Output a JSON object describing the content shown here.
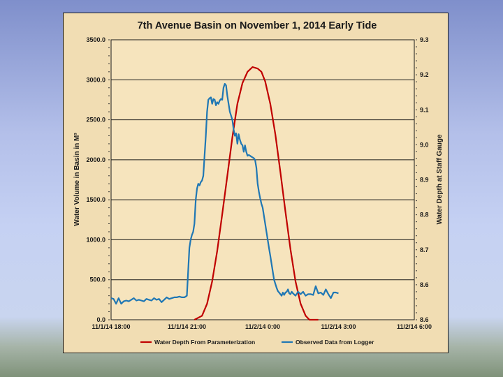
{
  "chart_data": {
    "type": "line",
    "title": "7th Avenue Basin on November 1, 2014 Early Tide",
    "ylabel": "Water  Volume  in  Basin  in M³",
    "y2label": "Water Depth at Staff Gauge",
    "ylim": [
      0,
      3500
    ],
    "yticks": [
      "0.0",
      "500.0",
      "1000.0",
      "1500.0",
      "2000.0",
      "2500.0",
      "3000.0",
      "3500.0"
    ],
    "y2ticks": [
      "8.6",
      "8.6",
      "8.7",
      "8.8",
      "8.9",
      "9.0",
      "9.1",
      "9.2",
      "9.3"
    ],
    "xlim_hours": [
      0,
      12
    ],
    "xticks": [
      "11/1/14 18:00",
      "11/1/14 21:00",
      "11/2/14 0:00",
      "11/2/14 3:00",
      "11/2/14 6:00"
    ],
    "grid": "horizontal",
    "legend_position": "bottom",
    "series": [
      {
        "name": "Water Depth From Parameterization",
        "color": "#c00000",
        "x": [
          3.3,
          3.6,
          3.8,
          4.0,
          4.2,
          4.4,
          4.6,
          4.8,
          5.0,
          5.2,
          5.4,
          5.6,
          5.8,
          5.95,
          6.1,
          6.3,
          6.5,
          6.7,
          6.9,
          7.1,
          7.3,
          7.5,
          7.7,
          7.85,
          8.0,
          8.2
        ],
        "values": [
          0,
          50,
          200,
          480,
          860,
          1320,
          1800,
          2280,
          2700,
          2960,
          3100,
          3160,
          3140,
          3100,
          2980,
          2700,
          2320,
          1850,
          1350,
          880,
          480,
          200,
          50,
          0,
          0,
          0
        ]
      },
      {
        "name": "Observed Data from Logger",
        "color": "#1f77b4",
        "x": [
          0.0,
          0.1,
          0.2,
          0.3,
          0.4,
          0.5,
          0.6,
          0.7,
          0.8,
          0.9,
          1.0,
          1.1,
          1.2,
          1.3,
          1.4,
          1.5,
          1.6,
          1.7,
          1.8,
          1.9,
          2.0,
          2.1,
          2.2,
          2.3,
          2.4,
          2.5,
          2.6,
          2.7,
          2.8,
          2.9,
          2.95,
          3.0,
          3.05,
          3.1,
          3.15,
          3.2,
          3.25,
          3.3,
          3.35,
          3.4,
          3.45,
          3.5,
          3.55,
          3.6,
          3.65,
          3.7,
          3.75,
          3.8,
          3.85,
          3.9,
          3.95,
          4.0,
          4.05,
          4.1,
          4.15,
          4.2,
          4.25,
          4.3,
          4.35,
          4.4,
          4.45,
          4.5,
          4.55,
          4.6,
          4.65,
          4.7,
          4.75,
          4.8,
          4.85,
          4.9,
          4.95,
          5.0,
          5.05,
          5.1,
          5.15,
          5.2,
          5.25,
          5.3,
          5.35,
          5.4,
          5.45,
          5.5,
          5.55,
          5.6,
          5.65,
          5.7,
          5.75,
          5.8,
          5.85,
          5.9,
          5.95,
          6.0,
          6.05,
          6.1,
          6.15,
          6.2,
          6.25,
          6.3,
          6.35,
          6.4,
          6.45,
          6.5,
          6.55,
          6.6,
          6.65,
          6.7,
          6.75,
          6.8,
          6.85,
          6.9,
          6.95,
          7.0,
          7.05,
          7.1,
          7.15,
          7.2,
          7.3,
          7.4,
          7.5,
          7.6,
          7.7,
          7.8,
          7.9,
          8.0,
          8.1,
          8.2,
          8.3,
          8.4,
          8.5,
          8.6,
          8.7,
          8.8,
          8.9,
          9.0
        ],
        "values": [
          270,
          260,
          200,
          270,
          200,
          230,
          240,
          230,
          250,
          270,
          240,
          250,
          240,
          230,
          260,
          250,
          240,
          270,
          250,
          260,
          220,
          250,
          280,
          260,
          270,
          280,
          280,
          290,
          280,
          280,
          290,
          300,
          600,
          900,
          1000,
          1060,
          1100,
          1200,
          1500,
          1640,
          1700,
          1680,
          1720,
          1740,
          1800,
          2050,
          2300,
          2600,
          2750,
          2770,
          2780,
          2700,
          2760,
          2750,
          2680,
          2720,
          2700,
          2740,
          2760,
          2750,
          2900,
          2950,
          2930,
          2800,
          2700,
          2600,
          2550,
          2500,
          2380,
          2300,
          2330,
          2200,
          2320,
          2250,
          2200,
          2180,
          2100,
          2180,
          2100,
          2050,
          2060,
          2050,
          2040,
          2030,
          2020,
          2000,
          1900,
          1700,
          1600,
          1520,
          1450,
          1400,
          1300,
          1200,
          1100,
          1000,
          900,
          800,
          700,
          600,
          500,
          450,
          400,
          360,
          340,
          320,
          300,
          340,
          310,
          340,
          350,
          380,
          330,
          320,
          350,
          330,
          300,
          350,
          320,
          350,
          300,
          320,
          320,
          310,
          420,
          330,
          340,
          310,
          380,
          320,
          270,
          340,
          340,
          330
        ],
        "x_note": "hours after 11/1/14 18:00"
      }
    ]
  }
}
